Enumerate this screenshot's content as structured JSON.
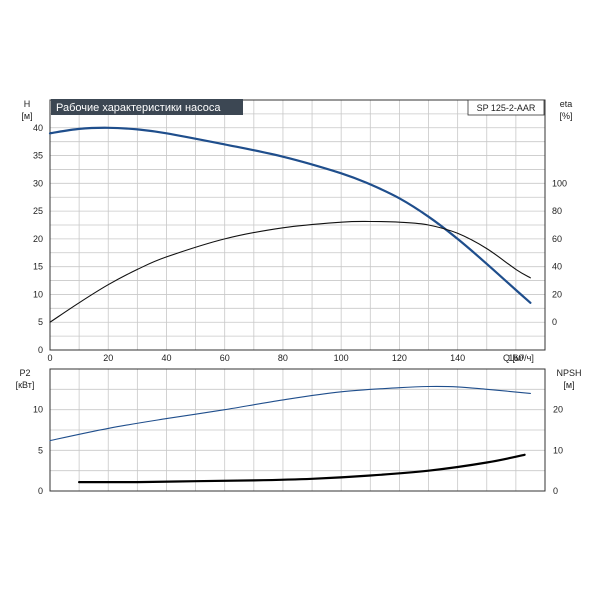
{
  "header": {
    "title": "Рабочие характеристики насоса",
    "model": "SP 125-2-AAR"
  },
  "colors": {
    "title_bg": "#3c4753",
    "title_text": "#ffffff",
    "head_curve": "#1f4e8c",
    "eta_curve": "#111111",
    "p2_curve": "#1f4e8c",
    "npsh_curve": "#000000"
  },
  "chart_data": [
    {
      "type": "line",
      "x_axis": {
        "label": "Q [м³/ч]",
        "range": [
          0,
          170
        ],
        "ticks": [
          0,
          20,
          40,
          60,
          80,
          100,
          120,
          140,
          160
        ]
      },
      "y_left": {
        "label_top": "H",
        "label_unit": "[м]",
        "range": [
          0,
          45
        ],
        "ticks": [
          0,
          5,
          10,
          15,
          20,
          25,
          30,
          35,
          40
        ]
      },
      "y_right": {
        "label_top": "eta",
        "label_unit": "[%]",
        "range": [
          -20,
          160
        ],
        "ticks": [
          0,
          20,
          40,
          60,
          80,
          100
        ]
      },
      "grid": true,
      "series": [
        {
          "axis": "left",
          "color_key": "head_curve",
          "width": 2.2,
          "x": [
            0,
            10,
            20,
            30,
            40,
            60,
            80,
            100,
            110,
            120,
            130,
            140,
            150,
            160,
            165
          ],
          "y": [
            39,
            39.8,
            40,
            39.7,
            39.0,
            37.0,
            34.8,
            31.8,
            29.8,
            27.3,
            24.0,
            20.0,
            15.5,
            10.8,
            8.5
          ]
        },
        {
          "axis": "right",
          "color_key": "eta_curve",
          "width": 1.1,
          "x": [
            0,
            10,
            20,
            30,
            40,
            60,
            80,
            100,
            110,
            120,
            130,
            140,
            150,
            160,
            165
          ],
          "y": [
            0,
            14,
            27,
            38,
            47,
            60,
            68,
            72,
            72.5,
            72,
            70,
            64,
            53,
            38,
            32
          ]
        }
      ]
    },
    {
      "type": "line",
      "x_axis": {
        "range": [
          0,
          170
        ]
      },
      "y_left": {
        "label_top": "P2",
        "label_unit": "[кВт]",
        "range": [
          0,
          15
        ],
        "ticks": [
          0,
          5,
          10
        ]
      },
      "y_right": {
        "label_top": "NPSH",
        "label_unit": "[м]",
        "range": [
          0,
          30
        ],
        "ticks": [
          0,
          10,
          20
        ]
      },
      "grid": true,
      "series": [
        {
          "axis": "left",
          "color_key": "p2_curve",
          "width": 1.1,
          "x": [
            0,
            20,
            40,
            60,
            80,
            100,
            120,
            130,
            140,
            150,
            165
          ],
          "y": [
            6.2,
            7.7,
            8.9,
            10.0,
            11.2,
            12.2,
            12.7,
            12.85,
            12.8,
            12.5,
            12.0
          ]
        },
        {
          "axis": "right",
          "color_key": "npsh_curve",
          "width": 2.2,
          "x": [
            10,
            30,
            50,
            70,
            90,
            110,
            130,
            150,
            163
          ],
          "y": [
            2.2,
            2.2,
            2.4,
            2.6,
            3.0,
            3.8,
            5.0,
            7.0,
            8.9
          ]
        }
      ]
    }
  ]
}
